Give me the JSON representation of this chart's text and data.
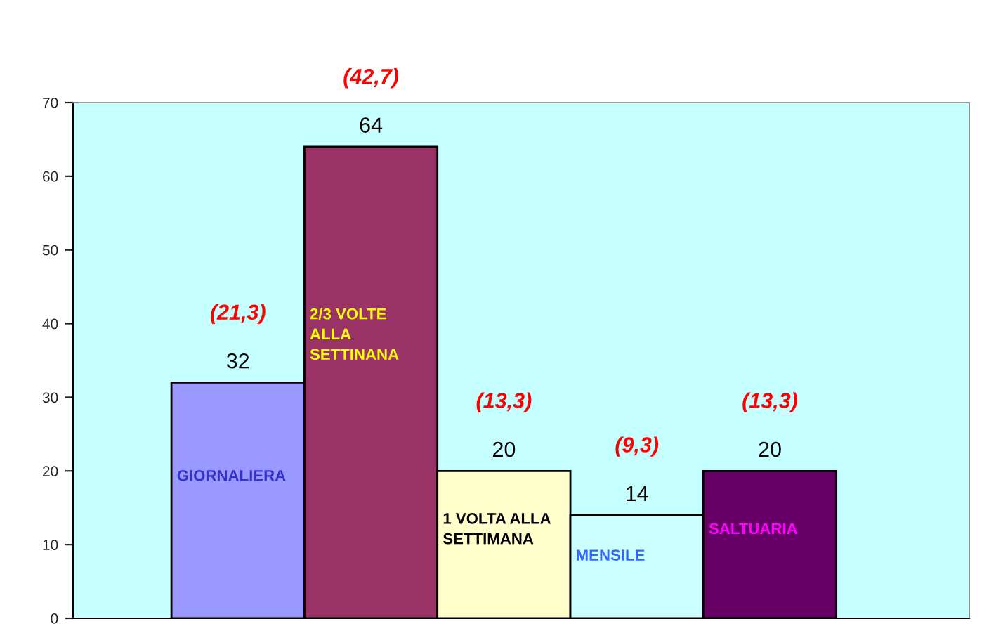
{
  "chart_data": {
    "type": "bar",
    "categories": [
      "GIORNALIERA",
      "2/3 VOLTE\nALLA\nSETTINANA",
      "1 VOLTA ALLA\nSETTIMANA",
      "MENSILE",
      "SALTUARIA"
    ],
    "values": [
      32,
      64,
      20,
      14,
      20
    ],
    "colors": [
      "#9999ff",
      "#993366",
      "#ffffcc",
      "#ccffff",
      "#660066"
    ],
    "ylim": [
      0,
      70
    ],
    "yticks": [
      0,
      10,
      20,
      30,
      40,
      50,
      60,
      70
    ],
    "tick_labels": "y",
    "data_labels": true,
    "annotations": [
      {
        "text": "(21,3)",
        "x": "GIORNALIERA",
        "y": 32
      },
      {
        "text": "(42,7)",
        "x": "2/3 VOLTE\nALLA\nSETTINANA",
        "y": 64
      },
      {
        "text": "(13,3)",
        "x": "1 VOLTA ALLA\nSETTIMANA",
        "y": 20
      },
      {
        "text": "(9,3)",
        "x": "MENSILE",
        "y": 14
      },
      {
        "text": "(13,3)",
        "x": "SALTUARIA",
        "y": 20
      }
    ]
  }
}
